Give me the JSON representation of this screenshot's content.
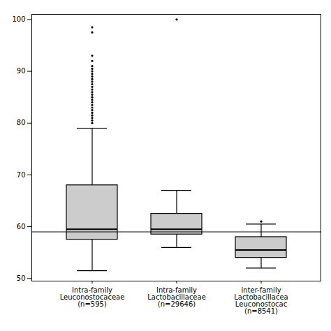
{
  "chart_data": {
    "type": "box",
    "categories": [
      "Intra-family\nLeuconostocaceae\n(n=595)",
      "Intra-family\nLactobacillaceae\n(n=29646)",
      "inter-family\nLactobacillacea\nLeuconostocac\n(n=8541)"
    ],
    "boxes": [
      {
        "q1": 57.5,
        "median": 59.5,
        "q3": 68.0,
        "whisker_low": 51.5,
        "whisker_high": 79.0,
        "outliers": [
          80.0,
          80.5,
          81.0,
          81.5,
          82.0,
          82.5,
          83.0,
          83.5,
          84.0,
          84.5,
          85.0,
          85.5,
          86.0,
          86.5,
          87.0,
          87.5,
          88.0,
          88.5,
          89.0,
          89.5,
          90.0,
          90.5,
          91.0,
          92.0,
          93.0,
          97.5,
          98.5
        ]
      },
      {
        "q1": 58.5,
        "median": 59.5,
        "q3": 62.5,
        "whisker_low": 56.0,
        "whisker_high": 67.0,
        "outliers": [
          100.0
        ]
      },
      {
        "q1": 54.0,
        "median": 55.5,
        "q3": 58.0,
        "whisker_low": 52.0,
        "whisker_high": 60.5,
        "outliers": [
          61.0
        ]
      }
    ],
    "reference_line": 59.0,
    "ylim": [
      49.5,
      101
    ],
    "yticks": [
      50,
      60,
      70,
      80,
      90,
      100
    ],
    "color": "#cccccc",
    "grid": false
  }
}
